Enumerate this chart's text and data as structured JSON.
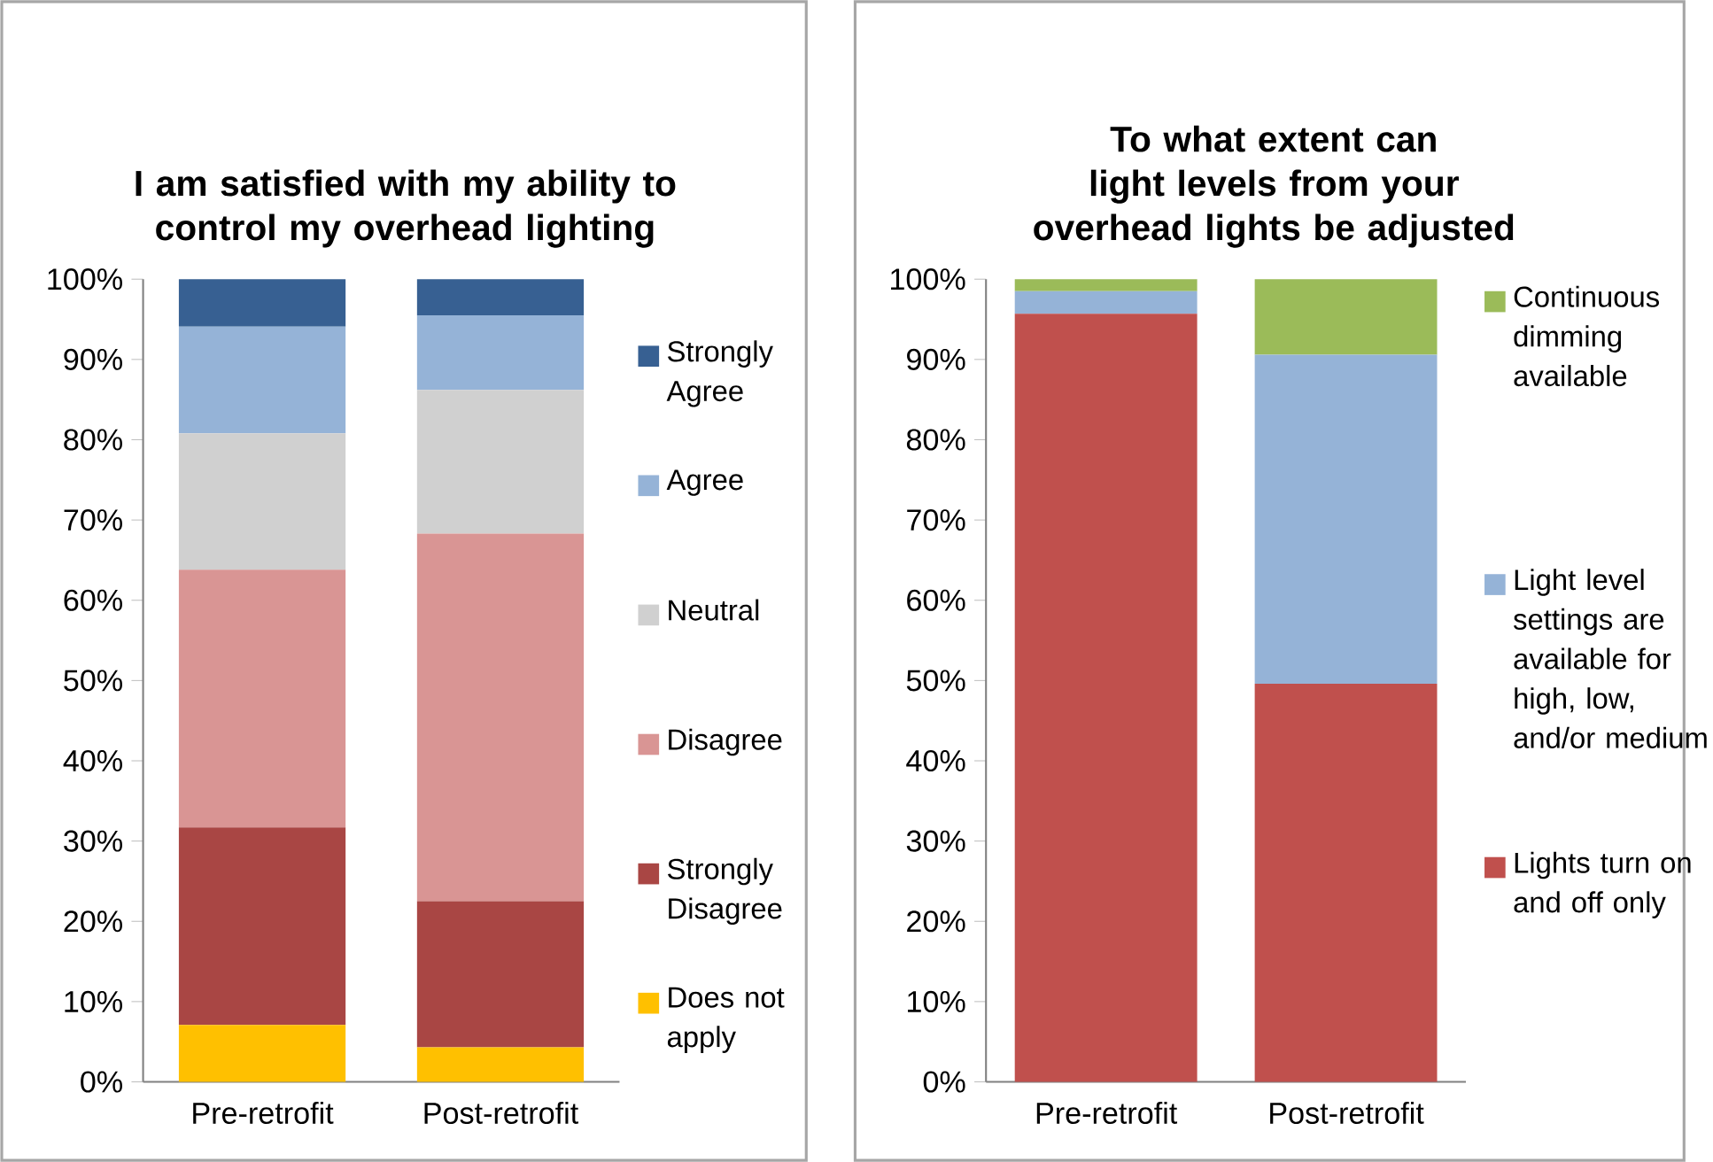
{
  "chart_data": [
    {
      "type": "bar",
      "stacked": true,
      "title": "I am satisfied with my ability to control my overhead lighting",
      "categories": [
        "Pre-retrofit",
        "Post-retrofit"
      ],
      "series": [
        {
          "name": "Does not apply",
          "color": "#ffc000",
          "values": [
            7.1,
            4.3
          ]
        },
        {
          "name": "Strongly Disagree",
          "color": "#a94644",
          "values": [
            24.6,
            18.2
          ]
        },
        {
          "name": "Disagree",
          "color": "#d99594",
          "values": [
            32.1,
            45.8
          ]
        },
        {
          "name": "Neutral",
          "color": "#d0d0d0",
          "values": [
            17.0,
            17.9
          ]
        },
        {
          "name": "Agree",
          "color": "#95b3d7",
          "values": [
            13.3,
            9.3
          ]
        },
        {
          "name": "Strongly Agree",
          "color": "#376092",
          "values": [
            5.9,
            4.5
          ]
        }
      ],
      "ylim": [
        0,
        100
      ],
      "yticks": [
        {
          "value": 0,
          "label": "0%"
        },
        {
          "value": 10,
          "label": "10%"
        },
        {
          "value": 20,
          "label": "20%"
        },
        {
          "value": 30,
          "label": "30%"
        },
        {
          "value": 40,
          "label": "40%"
        },
        {
          "value": 50,
          "label": "50%"
        },
        {
          "value": 60,
          "label": "60%"
        },
        {
          "value": 70,
          "label": "70%"
        },
        {
          "value": 80,
          "label": "80%"
        },
        {
          "value": 90,
          "label": "90%"
        },
        {
          "value": 100,
          "label": "100%"
        }
      ],
      "legend": "right"
    },
    {
      "type": "bar",
      "stacked": true,
      "title": "To what extent can light levels from your overhead lights be adjusted",
      "categories": [
        "Pre-retrofit",
        "Post-retrofit"
      ],
      "series": [
        {
          "name": "Lights turn on and off only",
          "color": "#c0504d",
          "values": [
            95.7,
            49.6
          ]
        },
        {
          "name": "Light level settings are available for high, low, and/or medium",
          "color": "#95b3d7",
          "values": [
            2.8,
            41.0
          ]
        },
        {
          "name": "Continuous dimming available",
          "color": "#9bbb59",
          "values": [
            1.5,
            9.4
          ]
        }
      ],
      "ylim": [
        0,
        100
      ],
      "yticks": [
        {
          "value": 0,
          "label": "0%"
        },
        {
          "value": 10,
          "label": "10%"
        },
        {
          "value": 20,
          "label": "20%"
        },
        {
          "value": 30,
          "label": "30%"
        },
        {
          "value": 40,
          "label": "40%"
        },
        {
          "value": 50,
          "label": "50%"
        },
        {
          "value": 60,
          "label": "60%"
        },
        {
          "value": 70,
          "label": "70%"
        },
        {
          "value": 80,
          "label": "80%"
        },
        {
          "value": 90,
          "label": "90%"
        },
        {
          "value": 100,
          "label": "100%"
        }
      ],
      "legend": "right"
    }
  ]
}
